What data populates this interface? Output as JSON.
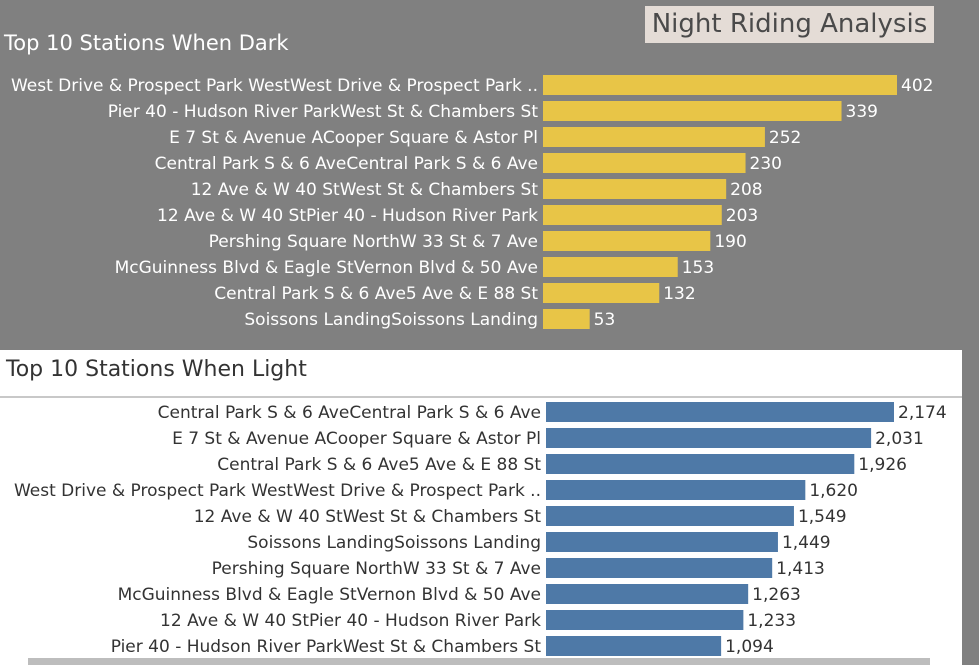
{
  "dashboard_title": "Night Riding Analysis",
  "chart_data": [
    {
      "type": "bar",
      "orientation": "horizontal",
      "title": "Top 10 Stations When Dark",
      "categories": [
        "West Drive & Prospect Park WestWest Drive & Prospect Park ..",
        "Pier 40 - Hudson River ParkWest St & Chambers St",
        "E 7 St & Avenue ACooper Square & Astor Pl",
        "Central Park S & 6 AveCentral Park S & 6 Ave",
        "12 Ave & W 40 StWest St & Chambers St",
        "12 Ave & W 40 StPier 40 - Hudson River Park",
        "Pershing Square NorthW 33 St & 7 Ave",
        "McGuinness Blvd & Eagle StVernon Blvd & 50 Ave",
        "Central Park S & 6 Ave5 Ave & E 88 St",
        "Soissons LandingSoissons Landing"
      ],
      "values": [
        402,
        339,
        252,
        230,
        208,
        203,
        190,
        153,
        132,
        53
      ],
      "value_labels": [
        "402",
        "339",
        "252",
        "230",
        "208",
        "203",
        "190",
        "153",
        "132",
        "53"
      ],
      "color": "#e8c547",
      "background": "#808080",
      "label_color": "#ffffff",
      "xlim": [
        0,
        402
      ]
    },
    {
      "type": "bar",
      "orientation": "horizontal",
      "title": "Top 10 Stations When Light",
      "categories": [
        "Central Park S & 6 AveCentral Park S & 6 Ave",
        "E 7 St & Avenue ACooper Square & Astor Pl",
        "Central Park S & 6 Ave5 Ave & E 88 St",
        "West Drive & Prospect Park WestWest Drive & Prospect Park ..",
        "12 Ave & W 40 StWest St & Chambers St",
        "Soissons LandingSoissons Landing",
        "Pershing Square NorthW 33 St & 7 Ave",
        "McGuinness Blvd & Eagle StVernon Blvd & 50 Ave",
        "12 Ave & W 40 StPier 40 - Hudson River Park",
        "Pier 40 - Hudson River ParkWest St & Chambers St"
      ],
      "values": [
        2174,
        2031,
        1926,
        1620,
        1549,
        1449,
        1413,
        1263,
        1233,
        1094
      ],
      "value_labels": [
        "2,174",
        "2,031",
        "1,926",
        "1,620",
        "1,549",
        "1,449",
        "1,413",
        "1,263",
        "1,233",
        "1,094"
      ],
      "color": "#4e79a7",
      "background": "#ffffff",
      "label_color": "#333333",
      "xlim": [
        0,
        2174
      ]
    }
  ]
}
